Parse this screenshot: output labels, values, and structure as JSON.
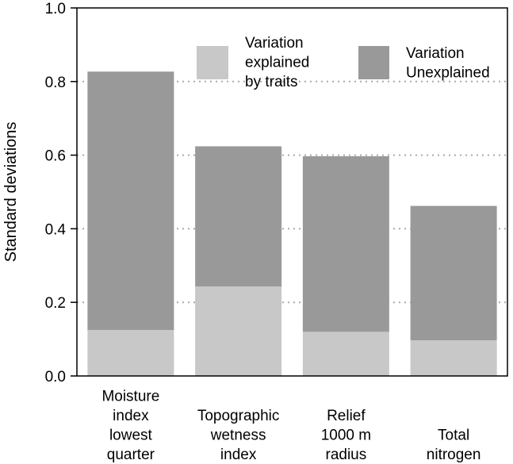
{
  "chart_data": {
    "type": "bar",
    "stacked": true,
    "title": "",
    "xlabel": "",
    "ylabel": "Standard deviations",
    "ylim": [
      0,
      1.0
    ],
    "yticks": [
      "0.0",
      "0.2",
      "0.4",
      "0.6",
      "0.8",
      "1.0"
    ],
    "grid": "dotted horizontal",
    "categories": [
      [
        "Moisture",
        "index",
        "lowest",
        "quarter"
      ],
      [
        "Topographic",
        "wetness",
        "index"
      ],
      [
        "Relief",
        "1000 m",
        "radius"
      ],
      [
        "Total",
        "nitrogen"
      ]
    ],
    "series": [
      {
        "name": "Variation explained by traits",
        "legend_lines": [
          "Variation",
          "explained",
          "by traits"
        ],
        "color": "#c8c8c8",
        "values": [
          0.125,
          0.243,
          0.12,
          0.097
        ]
      },
      {
        "name": "Variation Unexplained",
        "legend_lines": [
          "Variation",
          "Unexplained"
        ],
        "color": "#999999",
        "values": [
          0.702,
          0.381,
          0.477,
          0.365
        ]
      }
    ],
    "legend_position": "top-right"
  }
}
